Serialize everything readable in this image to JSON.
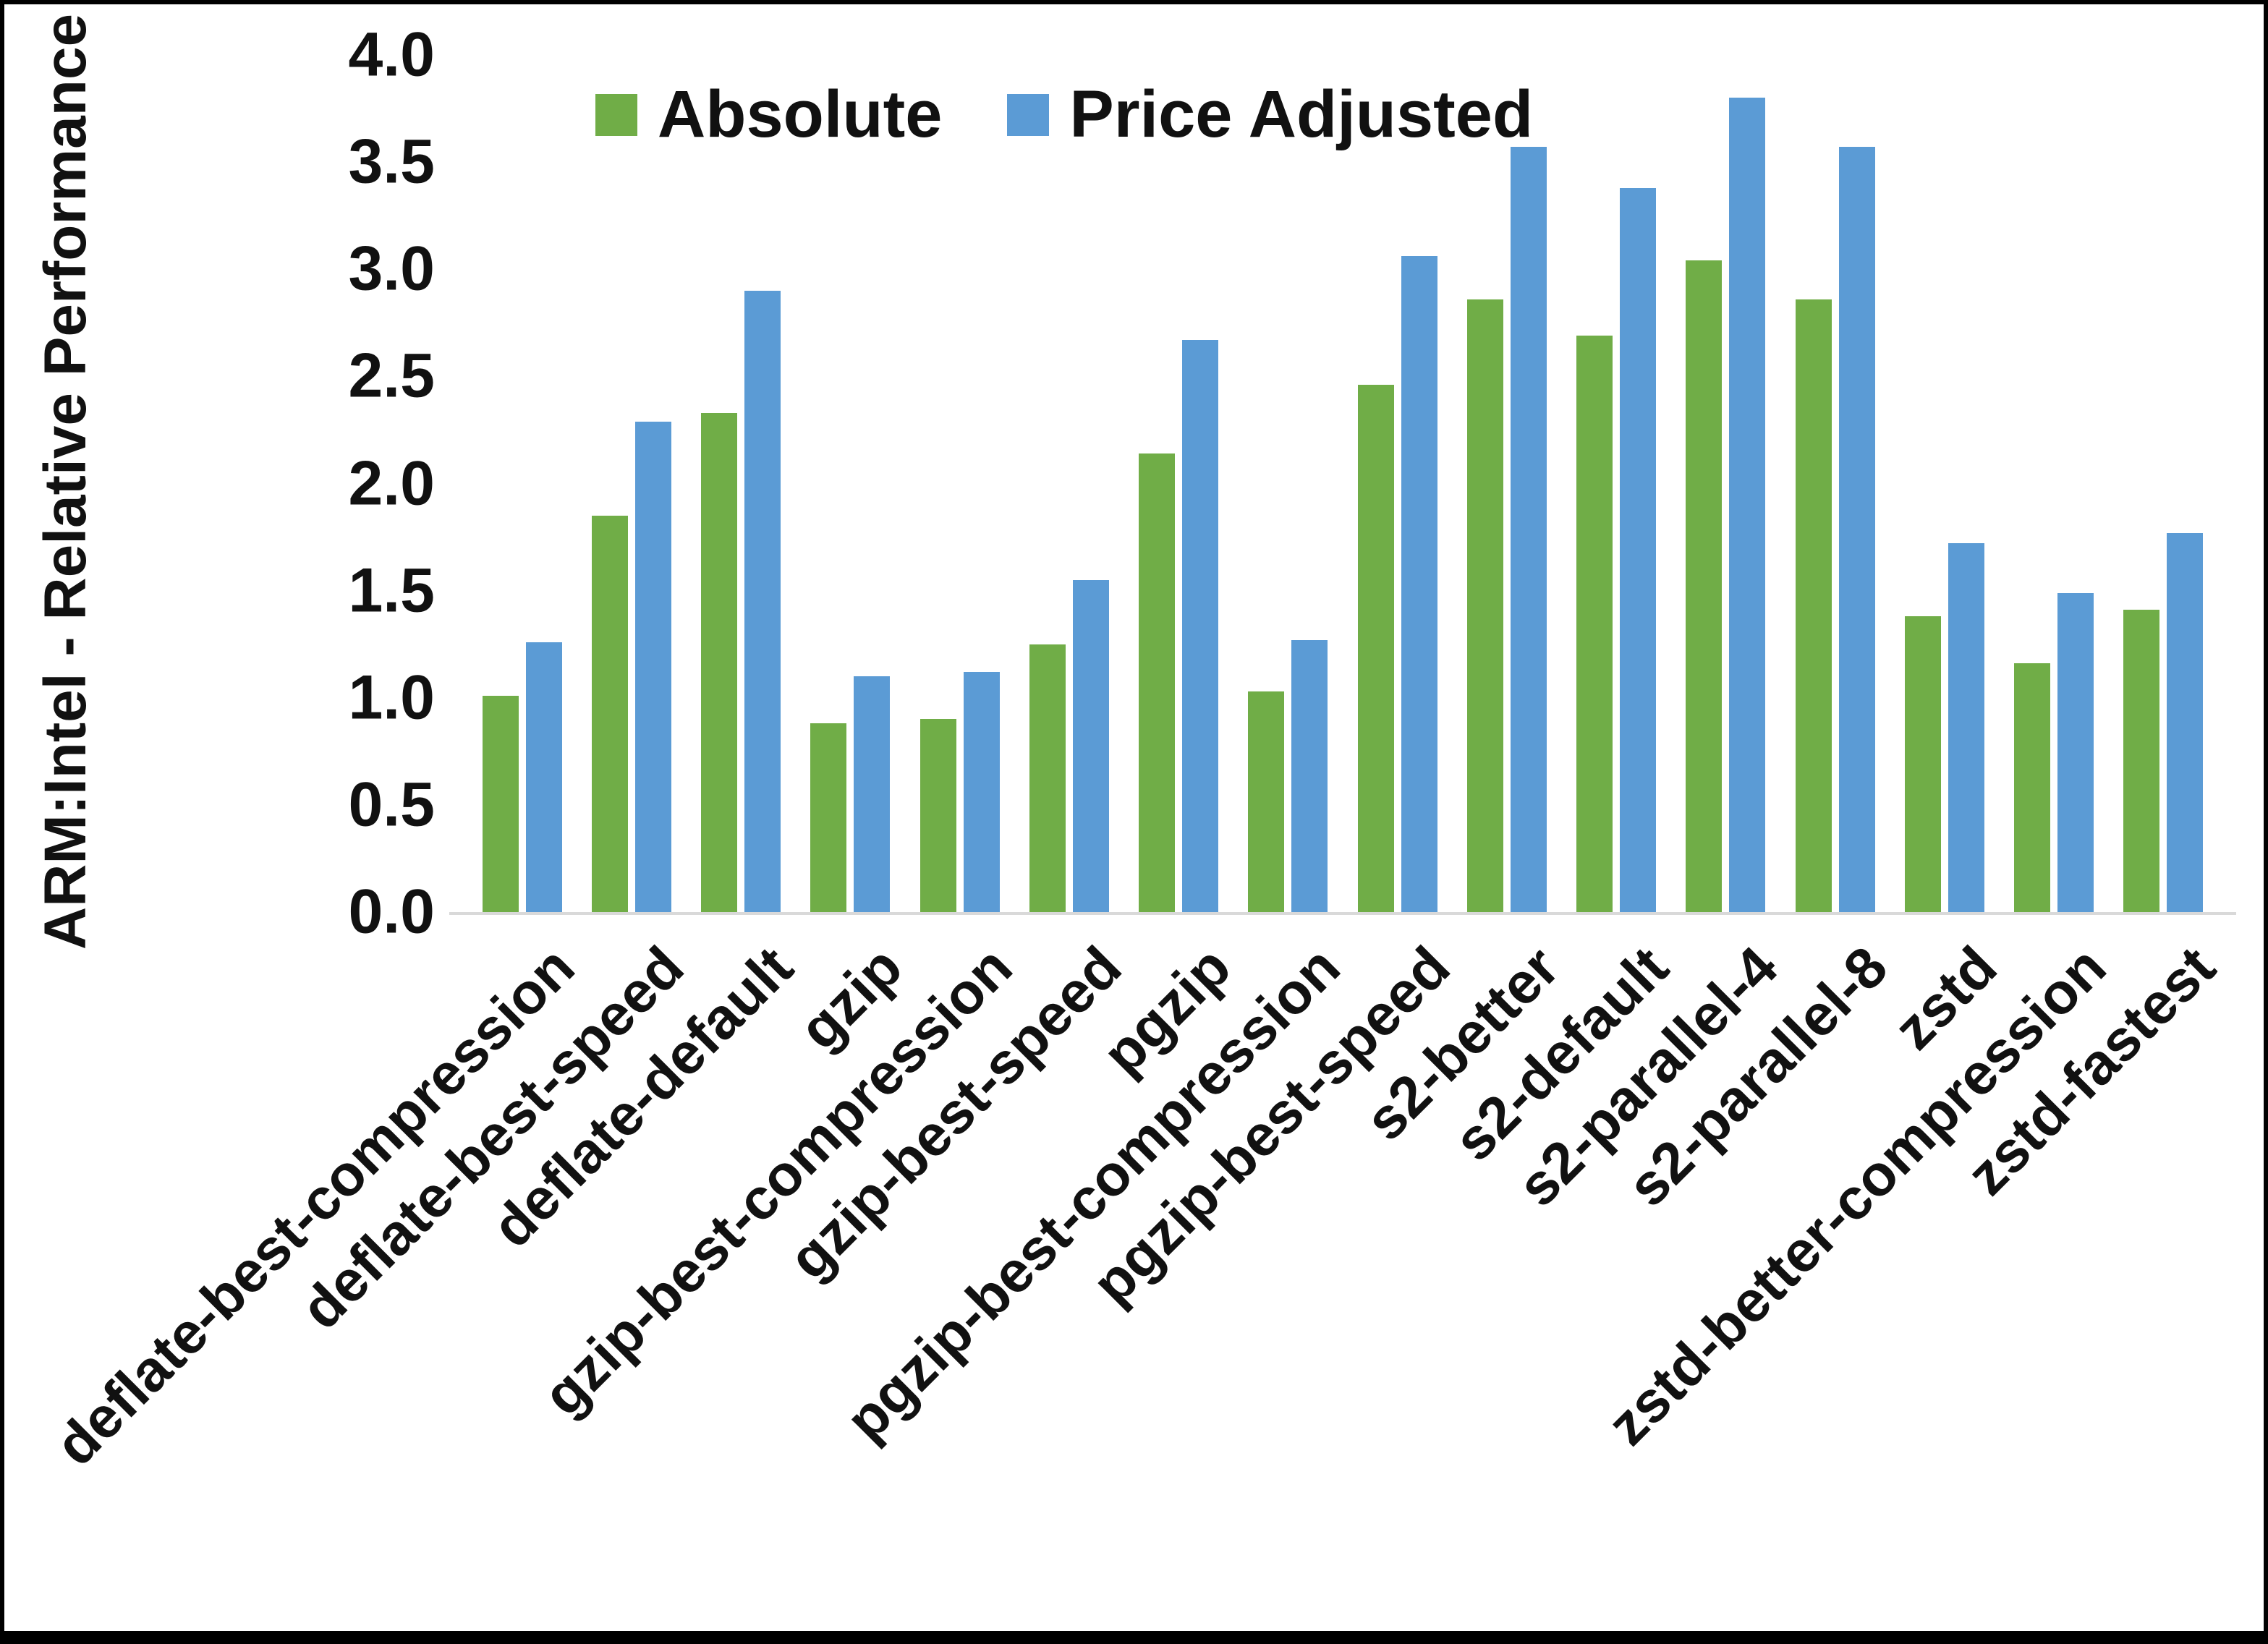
{
  "chart_data": {
    "type": "bar",
    "title": "",
    "xlabel": "",
    "ylabel": "ARM:Intel - Relative Performance",
    "ylim": [
      0,
      4.0
    ],
    "ytick_step": 0.5,
    "yticks": [
      "0.0",
      "0.5",
      "1.0",
      "1.5",
      "2.0",
      "2.5",
      "3.0",
      "3.5",
      "4.0"
    ],
    "grid": false,
    "legend_position": "top-center",
    "categories": [
      "deflate-best-compression",
      "deflate-best-speed",
      "deflate-default",
      "gzip",
      "gzip-best-compression",
      "gzip-best-speed",
      "pgzip",
      "pgzip-best-compression",
      "pgzip-best-speed",
      "s2-better",
      "s2-default",
      "s2-parallel-4",
      "s2-parallel-8",
      "zstd",
      "zstd-better-compression",
      "zstd-fastest"
    ],
    "series": [
      {
        "name": "Absolute",
        "color": "#70AD47",
        "values": [
          1.01,
          1.85,
          2.33,
          0.88,
          0.9,
          1.25,
          2.14,
          1.03,
          2.46,
          2.86,
          2.69,
          3.04,
          2.86,
          1.38,
          1.16,
          1.41
        ]
      },
      {
        "name": "Price Adjusted",
        "color": "#5B9BD5",
        "values": [
          1.26,
          2.29,
          2.9,
          1.1,
          1.12,
          1.55,
          2.67,
          1.27,
          3.06,
          3.57,
          3.38,
          3.8,
          3.57,
          1.72,
          1.49,
          1.77
        ]
      }
    ],
    "axis_line_color": "#d9d9d9",
    "text_color": "#111111",
    "background": "#FFFFFF"
  }
}
